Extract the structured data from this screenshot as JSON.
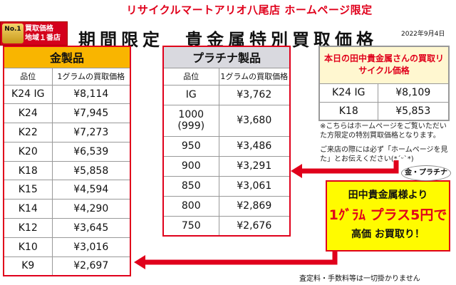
{
  "header": {
    "top_title": "リサイクルマートアリオ八尾店 ホームページ限定",
    "badge_no1": "No.1",
    "badge_line1": "買取価格",
    "badge_line2": "地域１番店",
    "main_title": "期間限定　貴金属特別買取価格",
    "date": "2022年9月4日"
  },
  "gold": {
    "title": "金製品",
    "col_grade": "品位",
    "col_price": "1グラムの買取価格",
    "rows": [
      {
        "grade": "K24 IG",
        "price": "¥8,114"
      },
      {
        "grade": "K24",
        "price": "¥7,945"
      },
      {
        "grade": "K22",
        "price": "¥7,273"
      },
      {
        "grade": "K20",
        "price": "¥6,539"
      },
      {
        "grade": "K18",
        "price": "¥5,858"
      },
      {
        "grade": "K15",
        "price": "¥4,594"
      },
      {
        "grade": "K14",
        "price": "¥4,290"
      },
      {
        "grade": "K12",
        "price": "¥3,645"
      },
      {
        "grade": "K10",
        "price": "¥3,016"
      },
      {
        "grade": "K9",
        "price": "¥2,697"
      }
    ]
  },
  "platinum": {
    "title": "プラチナ製品",
    "col_grade": "品位",
    "col_price": "1グラムの買取価格",
    "rows": [
      {
        "grade": "IG",
        "price": "¥3,762"
      },
      {
        "grade": "1000\n(999)",
        "price": "¥3,680"
      },
      {
        "grade": "950",
        "price": "¥3,486"
      },
      {
        "grade": "900",
        "price": "¥3,291"
      },
      {
        "grade": "850",
        "price": "¥3,061"
      },
      {
        "grade": "800",
        "price": "¥2,869"
      },
      {
        "grade": "750",
        "price": "¥2,676"
      }
    ]
  },
  "tanaka": {
    "title": "本日の田中貴金属さんの買取リサイクル価格",
    "rows": [
      {
        "grade": "K24 IG",
        "price": "¥8,109"
      },
      {
        "grade": "K18",
        "price": "¥5,853"
      }
    ]
  },
  "notes": {
    "note1": "※こちらはホームページをご覧いただいた方限定の特別買取価格となります。",
    "note2": "ご来店の際には必ず「ホームページを見た」とお伝えください(*ˊᵕˋ*)"
  },
  "promo": {
    "bubble": "金・プラチナ",
    "line1": "田中貴金属様より",
    "line2": "1ｸﾞﾗﾑ プラス5円で",
    "line3": "高価 お買取り！"
  },
  "footer": {
    "text": "査定料・手数料等は一切掛かりません"
  },
  "colors": {
    "accent_red": "#e0001b",
    "gold_header": "#f9b500",
    "platinum_header": "#d9d9df",
    "promo_bg": "#fffb00"
  }
}
